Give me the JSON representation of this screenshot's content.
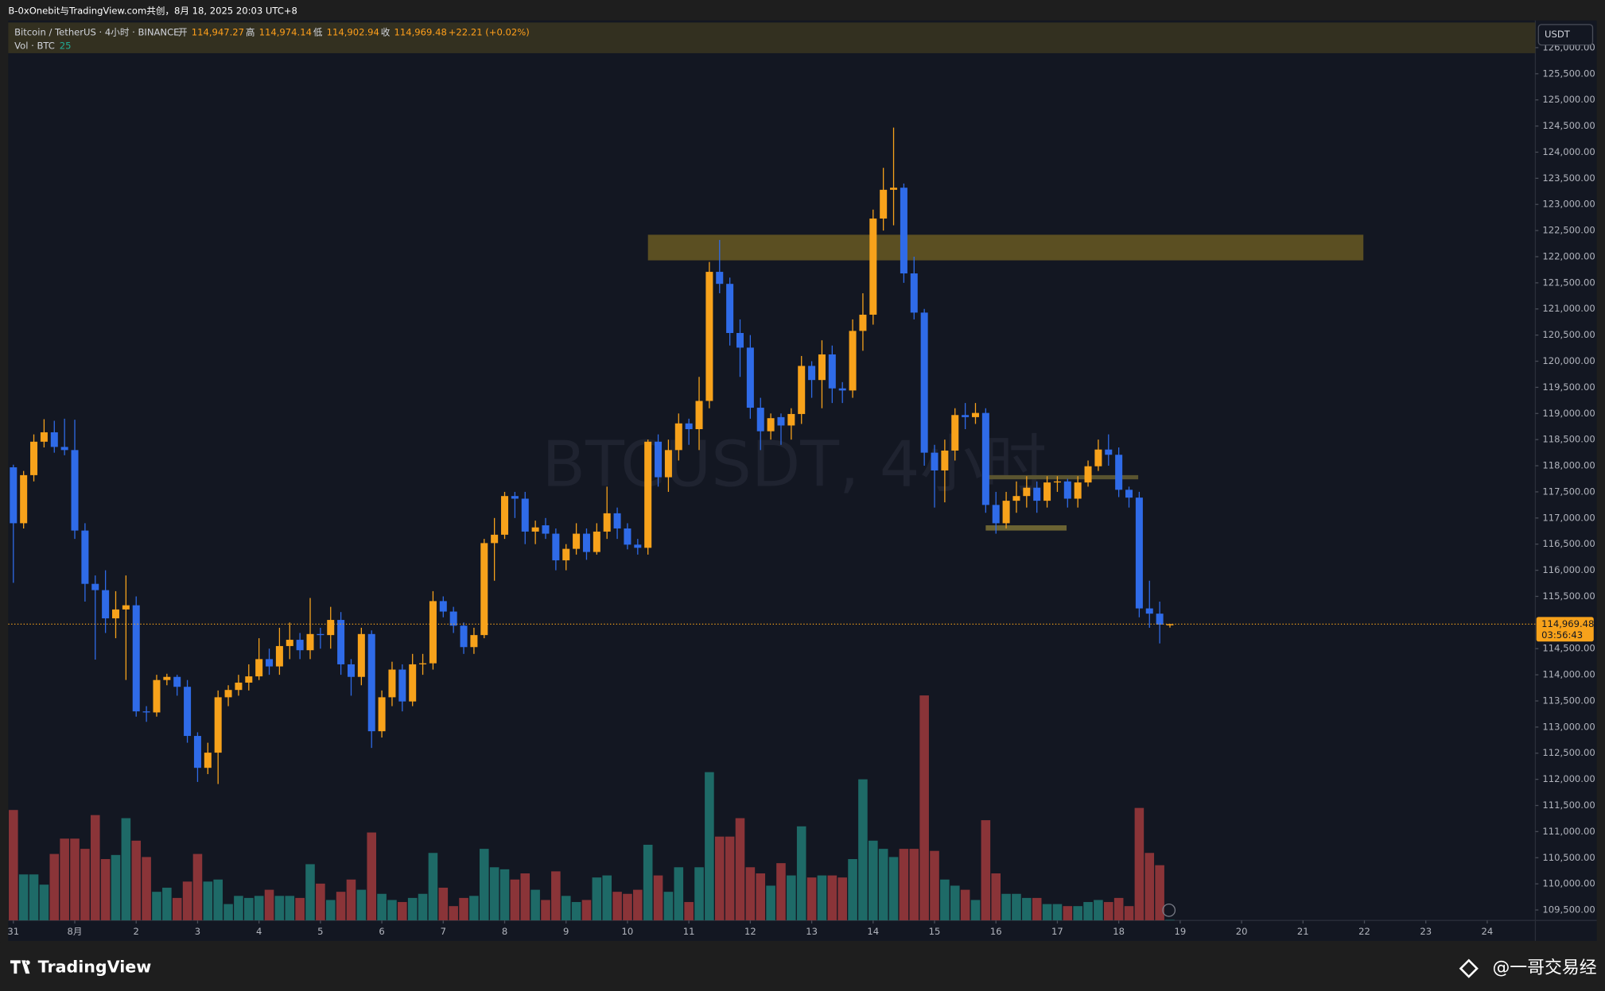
{
  "chart_data": {
    "type": "candlestick",
    "title": "B-0xOnebit与TradingView.com共创，8月 18, 2025 20:03 UTC+8",
    "symbol": "Bitcoin / TetherUS · 4小时 · BINANCE",
    "watermark": "BTCUSDT, 4小时",
    "ohlc_names": [
      "开",
      "高",
      "低",
      "收"
    ],
    "ohlc_labels": [
      "114,947.27",
      "114,974.14",
      "114,902.94",
      "114,969.48"
    ],
    "change_label": "+22.21 (+0.02%)",
    "volume_name": "Vol · BTC",
    "currency": "USDT",
    "last_price_label": "114,969.48",
    "countdown": "03:56:43",
    "brand": "TradingView",
    "author": "@一哥交易经",
    "up_color": "#f7a21b",
    "down_color": "#2f6be8",
    "volume_up_color": "#1e6a67",
    "volume_down_color": "#8a3438",
    "grid": false,
    "open": [
      117970,
      116900,
      117820,
      118460,
      118640,
      118360,
      118300,
      116760,
      115740,
      115620,
      115080,
      115250,
      115330,
      113300,
      113280,
      113900,
      113960,
      113770,
      112830,
      112220,
      112510,
      113570,
      113710,
      113850,
      113970,
      114300,
      114160,
      114550,
      114670,
      114470,
      114780,
      114760,
      115050,
      114200,
      113960,
      114780,
      112920,
      113570,
      114100,
      113490,
      114200,
      114220,
      115410,
      115210,
      114940,
      114530,
      114760,
      116520,
      116680,
      117420,
      117370,
      116740,
      116860,
      116700,
      116190,
      116410,
      116700,
      116350,
      116740,
      117090,
      116800,
      116490,
      116430,
      118460,
      117780,
      118300,
      118810,
      118700,
      119240,
      121710,
      121480,
      120540,
      120260,
      119110,
      118660,
      118930,
      118770,
      118990,
      119910,
      119640,
      120130,
      119480,
      119440,
      120580,
      120890,
      122730,
      123280,
      123320,
      121680,
      120930,
      118250,
      117910,
      118290,
      118970,
      118930,
      119010,
      117250,
      116900,
      117330,
      117420,
      117580,
      117330,
      117680,
      117700,
      117370,
      117680,
      117990,
      118310,
      118210,
      117540,
      117390,
      115270,
      115170,
      114947.27
    ],
    "high": [
      118020,
      117900,
      118600,
      118890,
      118860,
      118900,
      118880,
      116900,
      115900,
      116000,
      115600,
      115900,
      115500,
      113400,
      114000,
      114020,
      114000,
      113900,
      112900,
      112700,
      113700,
      113800,
      114000,
      114200,
      114700,
      114500,
      114900,
      115000,
      114800,
      115470,
      114900,
      115300,
      115200,
      114300,
      114900,
      114850,
      113700,
      114250,
      114200,
      114400,
      114400,
      115600,
      115500,
      115300,
      115000,
      114900,
      116600,
      117000,
      117500,
      117500,
      117500,
      116950,
      117000,
      116800,
      116500,
      116900,
      116800,
      116900,
      117600,
      117200,
      116900,
      116600,
      118500,
      118600,
      118500,
      119000,
      118900,
      119700,
      121900,
      122320,
      121600,
      120800,
      120500,
      119300,
      119000,
      119000,
      119100,
      120100,
      120000,
      120400,
      120300,
      119600,
      120800,
      121300,
      122900,
      123700,
      124470,
      123400,
      122000,
      121000,
      118400,
      118500,
      119100,
      119200,
      119200,
      119100,
      117500,
      117500,
      117700,
      117800,
      117700,
      117800,
      117800,
      117750,
      117800,
      118100,
      118500,
      118600,
      118350,
      117600,
      117500,
      115800,
      115400,
      114974.14
    ],
    "low": [
      115760,
      116800,
      117700,
      118350,
      118250,
      118200,
      116600,
      115400,
      114290,
      114800,
      114700,
      113900,
      113200,
      113100,
      113200,
      113800,
      113600,
      112700,
      111950,
      112100,
      111910,
      113400,
      113600,
      113700,
      113900,
      114000,
      114000,
      114300,
      114300,
      114300,
      114500,
      114500,
      114000,
      113600,
      113800,
      112600,
      112800,
      113400,
      113300,
      113400,
      114000,
      114100,
      115100,
      114800,
      114400,
      114400,
      114700,
      115800,
      116600,
      117000,
      116500,
      116500,
      116600,
      116000,
      116000,
      116300,
      116200,
      116300,
      116600,
      116600,
      116400,
      116300,
      116300,
      117600,
      117500,
      118100,
      118400,
      118300,
      119100,
      121300,
      120300,
      119700,
      118900,
      118300,
      118500,
      118400,
      118500,
      118800,
      119300,
      119100,
      119200,
      119200,
      119300,
      120200,
      120700,
      122500,
      122600,
      121500,
      120800,
      118000,
      117200,
      117300,
      118100,
      118700,
      118800,
      117100,
      116700,
      116800,
      117100,
      117200,
      117100,
      117200,
      117500,
      117200,
      117200,
      117600,
      117900,
      118000,
      117400,
      117200,
      115100,
      114900,
      114600,
      114902.94
    ],
    "close": [
      116900,
      117820,
      118460,
      118640,
      118360,
      118300,
      116760,
      115740,
      115620,
      115080,
      115250,
      115330,
      113300,
      113280,
      113900,
      113960,
      113770,
      112830,
      112220,
      112510,
      113570,
      113710,
      113850,
      113970,
      114300,
      114160,
      114550,
      114670,
      114470,
      114780,
      114760,
      115050,
      114200,
      113960,
      114780,
      112920,
      113570,
      114100,
      113490,
      114200,
      114220,
      115410,
      115210,
      114940,
      114530,
      114760,
      116520,
      116680,
      117420,
      117370,
      116740,
      116820,
      116700,
      116190,
      116410,
      116700,
      116350,
      116740,
      117090,
      116800,
      116490,
      116430,
      118460,
      117780,
      118300,
      118810,
      118700,
      119240,
      121710,
      121480,
      120540,
      120260,
      119110,
      118660,
      118910,
      118770,
      118990,
      119910,
      119640,
      120130,
      119480,
      119440,
      120580,
      120890,
      122730,
      123280,
      123320,
      121680,
      120930,
      118250,
      117910,
      118290,
      118970,
      118930,
      119010,
      117250,
      116900,
      117330,
      117420,
      117580,
      117330,
      117680,
      117700,
      117370,
      117680,
      117990,
      118310,
      118210,
      117540,
      117390,
      115270,
      115170,
      114960,
      114969.48
    ],
    "volume": [
      4320,
      1800,
      1800,
      1400,
      2600,
      3200,
      3200,
      2800,
      4120,
      2400,
      2560,
      4000,
      3120,
      2480,
      1120,
      1280,
      880,
      1520,
      2600,
      1520,
      1600,
      640,
      960,
      880,
      960,
      1200,
      960,
      960,
      880,
      2200,
      1440,
      800,
      1120,
      1600,
      1200,
      3440,
      1040,
      800,
      720,
      880,
      1040,
      2640,
      1280,
      560,
      880,
      960,
      2800,
      2080,
      2000,
      1600,
      1840,
      1200,
      800,
      1920,
      960,
      720,
      800,
      1680,
      1760,
      1120,
      1040,
      1200,
      2960,
      1760,
      1120,
      2080,
      720,
      2080,
      5800,
      3280,
      3280,
      4000,
      2080,
      1840,
      1360,
      2240,
      1760,
      3680,
      1680,
      1760,
      1760,
      1680,
      2400,
      5520,
      3120,
      2800,
      2480,
      2800,
      2800,
      8800,
      2720,
      1600,
      1360,
      1200,
      800,
      3920,
      1840,
      1040,
      1040,
      880,
      880,
      640,
      640,
      560,
      560,
      720,
      800,
      720,
      880,
      560,
      4400,
      2640,
      2160,
      25
    ],
    "volume_ylim": [
      0,
      35200
    ],
    "xlim": [
      -0.5,
      148.7
    ],
    "xticks": [
      {
        "value": 0,
        "label": "31"
      },
      {
        "value": 6,
        "label": "8月"
      },
      {
        "value": 12,
        "label": "2"
      },
      {
        "value": 18,
        "label": "3"
      },
      {
        "value": 24,
        "label": "4"
      },
      {
        "value": 30,
        "label": "5"
      },
      {
        "value": 36,
        "label": "6"
      },
      {
        "value": 42,
        "label": "7"
      },
      {
        "value": 48,
        "label": "8"
      },
      {
        "value": 54,
        "label": "9"
      },
      {
        "value": 60,
        "label": "10"
      },
      {
        "value": 66,
        "label": "11"
      },
      {
        "value": 72,
        "label": "12"
      },
      {
        "value": 78,
        "label": "13"
      },
      {
        "value": 84,
        "label": "14"
      },
      {
        "value": 90,
        "label": "15"
      },
      {
        "value": 96,
        "label": "16"
      },
      {
        "value": 102,
        "label": "17"
      },
      {
        "value": 108,
        "label": "18"
      },
      {
        "value": 114,
        "label": "19"
      },
      {
        "value": 120,
        "label": "20"
      },
      {
        "value": 126,
        "label": "21"
      },
      {
        "value": 132,
        "label": "22"
      },
      {
        "value": 138,
        "label": "23"
      },
      {
        "value": 144,
        "label": "24"
      }
    ],
    "ylim": [
      109300,
      126520
    ],
    "yticks": [
      {
        "value": 109500,
        "label": "109,500.00"
      },
      {
        "value": 110000,
        "label": "110,000.00"
      },
      {
        "value": 110500,
        "label": "110,500.00"
      },
      {
        "value": 111000,
        "label": "111,000.00"
      },
      {
        "value": 111500,
        "label": "111,500.00"
      },
      {
        "value": 112000,
        "label": "112,000.00"
      },
      {
        "value": 112500,
        "label": "112,500.00"
      },
      {
        "value": 113000,
        "label": "113,000.00"
      },
      {
        "value": 113500,
        "label": "113,500.00"
      },
      {
        "value": 114000,
        "label": "114,000.00"
      },
      {
        "value": 114500,
        "label": "114,500.00"
      },
      {
        "value": 115500,
        "label": "115,500.00"
      },
      {
        "value": 116000,
        "label": "116,000.00"
      },
      {
        "value": 116500,
        "label": "116,500.00"
      },
      {
        "value": 117000,
        "label": "117,000.00"
      },
      {
        "value": 117500,
        "label": "117,500.00"
      },
      {
        "value": 118000,
        "label": "118,000.00"
      },
      {
        "value": 118500,
        "label": "118,500.00"
      },
      {
        "value": 119000,
        "label": "119,000.00"
      },
      {
        "value": 119500,
        "label": "119,500.00"
      },
      {
        "value": 120000,
        "label": "120,000.00"
      },
      {
        "value": 120500,
        "label": "120,500.00"
      },
      {
        "value": 121000,
        "label": "121,000.00"
      },
      {
        "value": 121500,
        "label": "121,500.00"
      },
      {
        "value": 122000,
        "label": "122,000.00"
      },
      {
        "value": 122500,
        "label": "122,500.00"
      },
      {
        "value": 123000,
        "label": "123,000.00"
      },
      {
        "value": 123500,
        "label": "123,500.00"
      },
      {
        "value": 124000,
        "label": "124,000.00"
      },
      {
        "value": 124500,
        "label": "124,500.00"
      },
      {
        "value": 125000,
        "label": "125,000.00"
      },
      {
        "value": 125500,
        "label": "125,500.00"
      },
      {
        "value": 126000,
        "label": "126,000.00"
      }
    ],
    "zones": [
      {
        "x": [
          62,
          131.9
        ],
        "y": [
          121930,
          122420
        ],
        "color": "#5b4f22"
      },
      {
        "x": [
          95.2,
          109.9
        ],
        "y": [
          117740,
          117820
        ],
        "color": "#5a5430"
      },
      {
        "x": [
          95,
          102.9
        ],
        "y": [
          116760,
          116860
        ],
        "color": "#6b6333"
      }
    ]
  }
}
